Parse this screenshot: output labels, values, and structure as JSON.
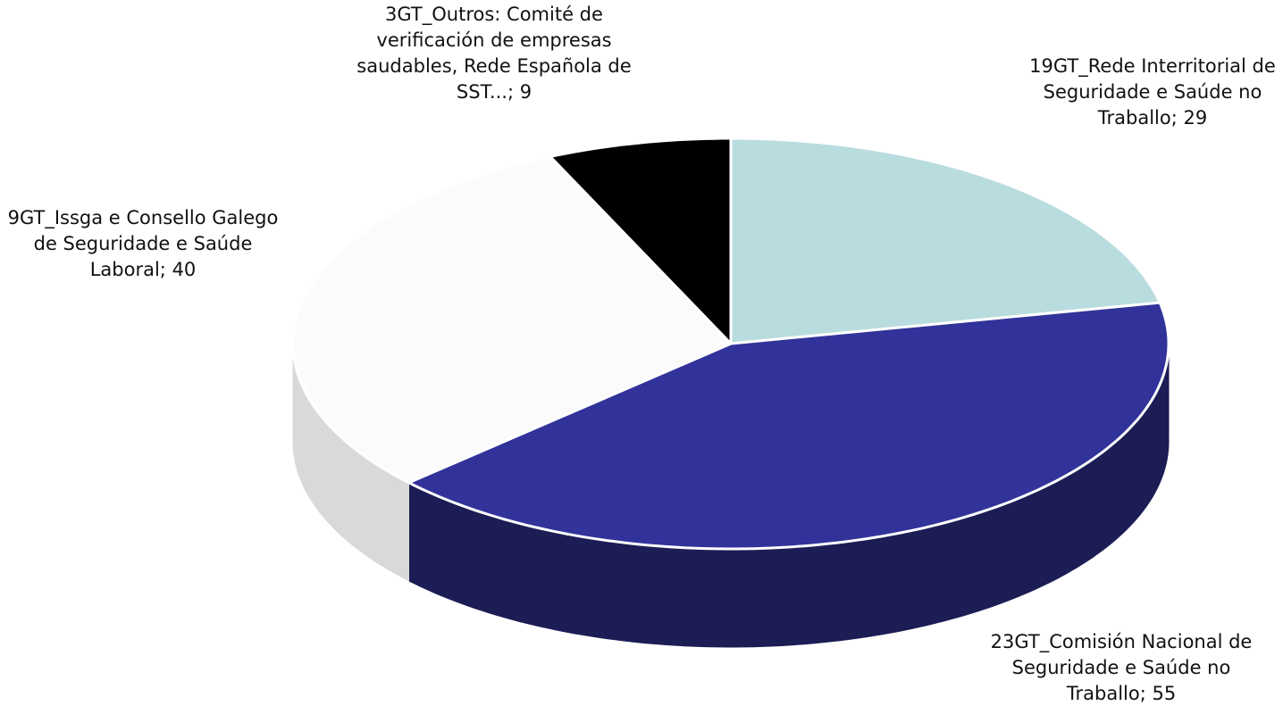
{
  "chart_data": {
    "type": "pie3d",
    "categories": [
      "19GT_Rede Interritorial de Seguridade e Saúde no Traballo",
      "23GT_Comisión Nacional de Seguridade e Saúde no Traballo",
      "9GT_Issga e Consello Galego de Seguridade e Saúde Laboral",
      "3GT_Outros: Comité de verificación de empresas saudables, Rede Española de SST..."
    ],
    "values": [
      29,
      55,
      40,
      9
    ],
    "colors": [
      "#b9dcdf",
      "#31339a",
      "#fbfbfb",
      "#000000"
    ],
    "side_colors": [
      "#8fb6ba",
      "#1c1d55",
      "#d9d9d9",
      "#000000"
    ],
    "label_separator": "; "
  }
}
